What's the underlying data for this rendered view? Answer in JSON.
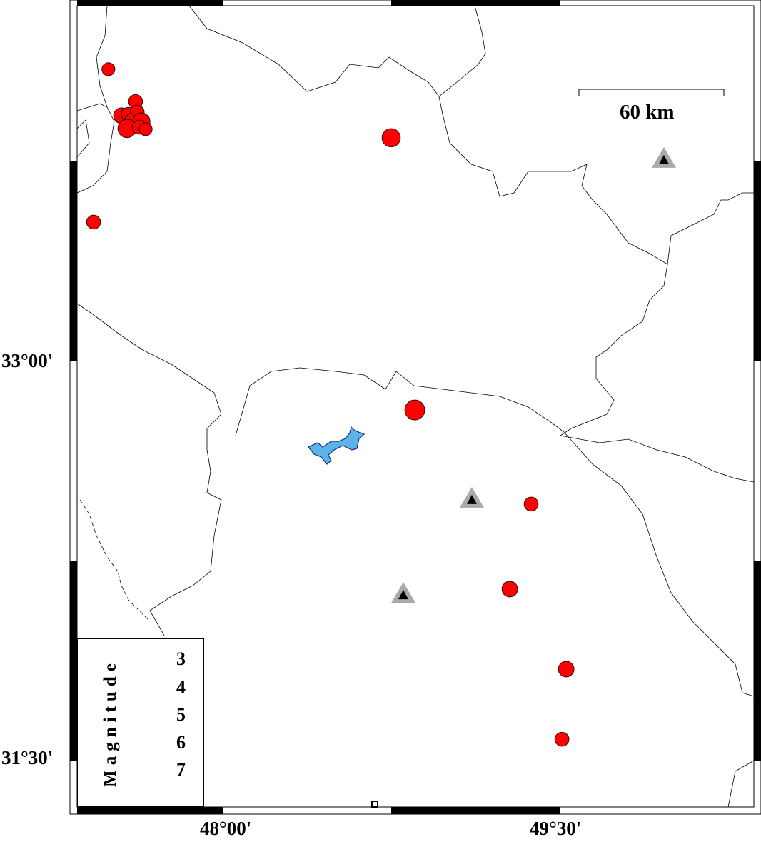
{
  "map": {
    "lon_range": [
      47.31,
      50.32
    ],
    "lat_range": [
      31.38,
      34.37
    ],
    "frame_tick_interval_deg": 0.75,
    "x_tick_labels": [
      {
        "label": "48°00'",
        "lon": 48.0
      },
      {
        "label": "49°30'",
        "lon": 49.5
      }
    ],
    "y_tick_labels": [
      {
        "label": "33°00'",
        "lat": 33.0
      },
      {
        "label": "31°30'",
        "lat": 31.5
      }
    ],
    "scale_bar": {
      "label": "60 km",
      "km": 60
    },
    "colors": {
      "event": "#ff0000",
      "station_outer": "#aaaaaa",
      "station_inner": "#000000",
      "lake": "#5ab4e6",
      "lake_edge": "#1a2a8c"
    }
  },
  "events": [
    {
      "lon": 47.491,
      "lat": 34.093,
      "mag": 2.5
    },
    {
      "lon": 47.425,
      "lat": 33.52,
      "mag": 2.7
    },
    {
      "lon": 48.75,
      "lat": 33.836,
      "mag": 3.5
    },
    {
      "lon": 48.855,
      "lat": 32.815,
      "mag": 3.8
    },
    {
      "lon": 49.373,
      "lat": 32.462,
      "mag": 2.7
    },
    {
      "lon": 49.278,
      "lat": 32.143,
      "mag": 3.0
    },
    {
      "lon": 49.529,
      "lat": 31.843,
      "mag": 3.0
    },
    {
      "lon": 49.51,
      "lat": 31.58,
      "mag": 2.7
    },
    {
      "lon": 47.612,
      "lat": 33.972,
      "mag": 2.7
    },
    {
      "lon": 47.549,
      "lat": 33.919,
      "mag": 3.0
    },
    {
      "lon": 47.58,
      "lat": 33.924,
      "mag": 2.7
    },
    {
      "lon": 47.619,
      "lat": 33.932,
      "mag": 2.7
    },
    {
      "lon": 47.596,
      "lat": 33.897,
      "mag": 3.0
    },
    {
      "lon": 47.638,
      "lat": 33.897,
      "mag": 3.3
    },
    {
      "lon": 47.574,
      "lat": 33.871,
      "mag": 3.5
    },
    {
      "lon": 47.628,
      "lat": 33.876,
      "mag": 2.7
    },
    {
      "lon": 47.657,
      "lat": 33.868,
      "mag": 2.5
    }
  ],
  "stations": [
    {
      "lon": 49.964,
      "lat": 33.753
    },
    {
      "lon": 49.109,
      "lat": 32.478
    },
    {
      "lon": 48.804,
      "lat": 32.121
    }
  ],
  "legend": {
    "title": "Magnitude",
    "entries": [
      {
        "mag": 3,
        "label": "3"
      },
      {
        "mag": 4,
        "label": "4"
      },
      {
        "mag": 5,
        "label": "5"
      },
      {
        "mag": 6,
        "label": "6"
      },
      {
        "mag": 7,
        "label": "7"
      }
    ]
  }
}
